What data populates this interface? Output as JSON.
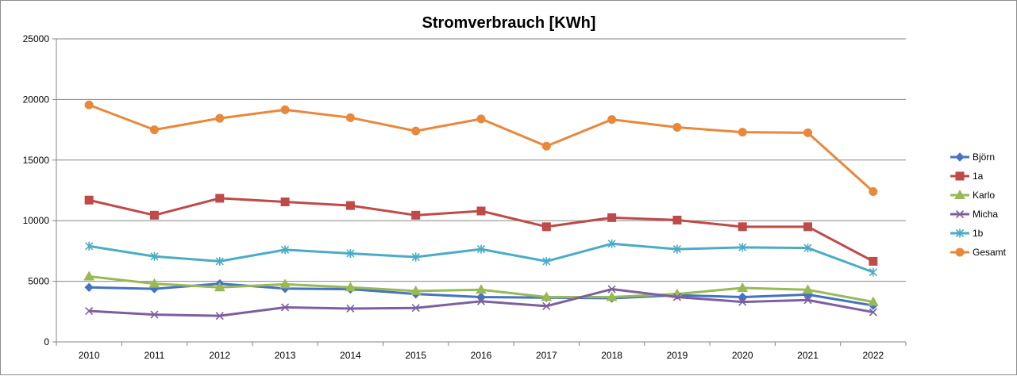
{
  "chart_data": {
    "type": "line",
    "title": "Stromverbrauch [KWh]",
    "xlabel": "",
    "ylabel": "",
    "categories": [
      "2010",
      "2011",
      "2012",
      "2013",
      "2014",
      "2015",
      "2016",
      "2017",
      "2018",
      "2019",
      "2020",
      "2021",
      "2022"
    ],
    "ylim": [
      0,
      25000
    ],
    "yticks": [
      0,
      5000,
      10000,
      15000,
      20000,
      25000
    ],
    "grid": true,
    "legend_position": "right",
    "series": [
      {
        "name": "Björn",
        "color": "#4472c4",
        "marker": "diamond",
        "values": [
          4500,
          4380,
          4800,
          4400,
          4350,
          3950,
          3700,
          3650,
          3600,
          3850,
          3700,
          3900,
          3000
        ]
      },
      {
        "name": "1a",
        "color": "#be4b48",
        "marker": "square",
        "values": [
          11700,
          10450,
          11850,
          11550,
          11250,
          10450,
          10800,
          9500,
          10250,
          10050,
          9500,
          9500,
          6650
        ]
      },
      {
        "name": "Karlo",
        "color": "#98b954",
        "marker": "triangle",
        "values": [
          5400,
          4800,
          4500,
          4750,
          4500,
          4200,
          4300,
          3700,
          3700,
          3950,
          4450,
          4300,
          3300
        ]
      },
      {
        "name": "Micha",
        "color": "#7d5fa0",
        "marker": "x",
        "values": [
          2550,
          2250,
          2150,
          2850,
          2750,
          2800,
          3350,
          2950,
          4350,
          3700,
          3300,
          3450,
          2450
        ]
      },
      {
        "name": "1b",
        "color": "#4aacc6",
        "marker": "star",
        "values": [
          7900,
          7050,
          6650,
          7600,
          7300,
          7000,
          7650,
          6650,
          8100,
          7650,
          7800,
          7750,
          5750
        ]
      },
      {
        "name": "Gesamt",
        "color": "#e8883a",
        "marker": "circle",
        "values": [
          19550,
          17500,
          18450,
          19150,
          18500,
          17400,
          18400,
          16150,
          18350,
          17700,
          17300,
          17250,
          12400
        ]
      }
    ]
  }
}
